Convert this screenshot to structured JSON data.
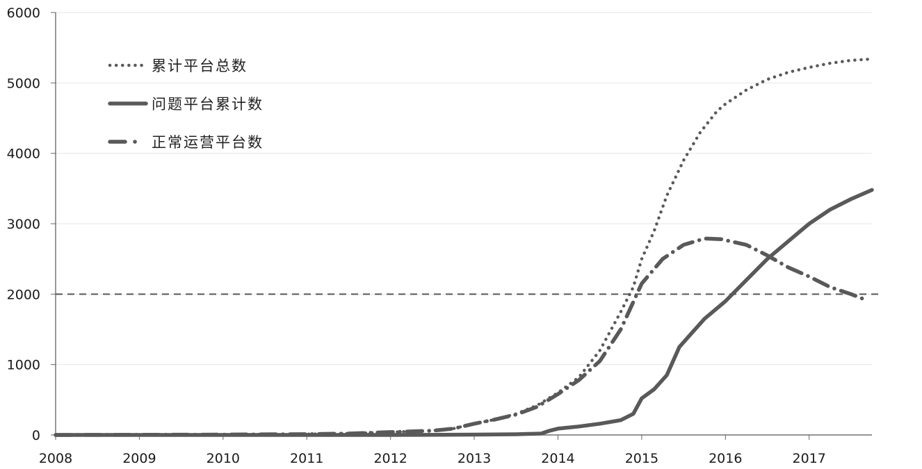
{
  "chart_data": {
    "type": "line",
    "xlim": [
      2008,
      2017.75
    ],
    "ylim": [
      0,
      6000
    ],
    "x_ticks": [
      "2008",
      "2009",
      "2010",
      "2011",
      "2012",
      "2013",
      "2014",
      "2015",
      "2016",
      "2017"
    ],
    "y_ticks": [
      "0",
      "1000",
      "2000",
      "3000",
      "4000",
      "5000",
      "6000"
    ],
    "grid": true,
    "legend_position": "top-left",
    "reference_line": {
      "y": 2000,
      "style": "dashed"
    },
    "series": [
      {
        "name": "累计平台总数",
        "style": "dotted",
        "color": "#595959",
        "points": [
          [
            2008.0,
            0
          ],
          [
            2009.0,
            0
          ],
          [
            2010.0,
            5
          ],
          [
            2010.5,
            8
          ],
          [
            2011.0,
            12
          ],
          [
            2011.5,
            20
          ],
          [
            2012.0,
            40
          ],
          [
            2012.5,
            60
          ],
          [
            2012.75,
            90
          ],
          [
            2013.0,
            160
          ],
          [
            2013.25,
            220
          ],
          [
            2013.5,
            300
          ],
          [
            2013.75,
            420
          ],
          [
            2014.0,
            600
          ],
          [
            2014.25,
            820
          ],
          [
            2014.5,
            1200
          ],
          [
            2014.75,
            1750
          ],
          [
            2014.9,
            2100
          ],
          [
            2015.0,
            2500
          ],
          [
            2015.15,
            2900
          ],
          [
            2015.3,
            3400
          ],
          [
            2015.5,
            3900
          ],
          [
            2015.7,
            4300
          ],
          [
            2015.9,
            4600
          ],
          [
            2016.0,
            4700
          ],
          [
            2016.25,
            4900
          ],
          [
            2016.5,
            5050
          ],
          [
            2016.75,
            5150
          ],
          [
            2017.0,
            5220
          ],
          [
            2017.25,
            5280
          ],
          [
            2017.5,
            5320
          ],
          [
            2017.75,
            5340
          ]
        ]
      },
      {
        "name": "问题平台累计数",
        "style": "solid",
        "color": "#595959",
        "points": [
          [
            2008.0,
            0
          ],
          [
            2012.0,
            0
          ],
          [
            2013.0,
            5
          ],
          [
            2013.5,
            10
          ],
          [
            2013.8,
            20
          ],
          [
            2013.9,
            60
          ],
          [
            2014.0,
            90
          ],
          [
            2014.25,
            120
          ],
          [
            2014.5,
            160
          ],
          [
            2014.75,
            210
          ],
          [
            2014.9,
            300
          ],
          [
            2015.0,
            520
          ],
          [
            2015.15,
            650
          ],
          [
            2015.3,
            850
          ],
          [
            2015.45,
            1250
          ],
          [
            2015.6,
            1450
          ],
          [
            2015.75,
            1650
          ],
          [
            2016.0,
            1900
          ],
          [
            2016.25,
            2200
          ],
          [
            2016.5,
            2500
          ],
          [
            2016.75,
            2750
          ],
          [
            2017.0,
            3000
          ],
          [
            2017.25,
            3200
          ],
          [
            2017.5,
            3350
          ],
          [
            2017.75,
            3480
          ]
        ]
      },
      {
        "name": "正常运营平台数",
        "style": "dashdot",
        "color": "#595959",
        "points": [
          [
            2008.0,
            0
          ],
          [
            2010.0,
            5
          ],
          [
            2011.0,
            12
          ],
          [
            2011.5,
            20
          ],
          [
            2012.0,
            40
          ],
          [
            2012.5,
            60
          ],
          [
            2012.75,
            90
          ],
          [
            2013.0,
            160
          ],
          [
            2013.25,
            220
          ],
          [
            2013.5,
            290
          ],
          [
            2013.75,
            400
          ],
          [
            2014.0,
            580
          ],
          [
            2014.25,
            780
          ],
          [
            2014.5,
            1050
          ],
          [
            2014.75,
            1500
          ],
          [
            2015.0,
            2150
          ],
          [
            2015.25,
            2500
          ],
          [
            2015.5,
            2700
          ],
          [
            2015.75,
            2790
          ],
          [
            2015.95,
            2780
          ],
          [
            2016.25,
            2700
          ],
          [
            2016.5,
            2550
          ],
          [
            2016.75,
            2380
          ],
          [
            2017.0,
            2250
          ],
          [
            2017.25,
            2100
          ],
          [
            2017.5,
            2000
          ],
          [
            2017.65,
            1930
          ]
        ]
      }
    ]
  }
}
